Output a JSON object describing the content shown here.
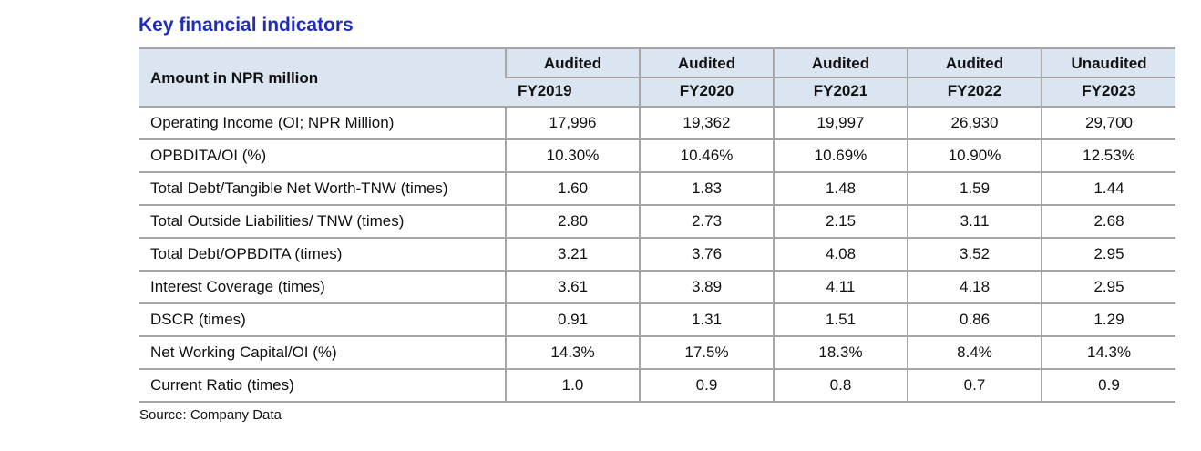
{
  "title": "Key financial indicators",
  "source": "Source: Company Data",
  "colors": {
    "title_blue": "#1f2dbb",
    "header_bg": "#dbe5f1",
    "border_gray": "#a6a6a6"
  },
  "table": {
    "corner_header": "Amount in NPR million",
    "audit_status": [
      "Audited",
      "Audited",
      "Audited",
      "Audited",
      "Unaudited"
    ],
    "years": [
      "FY2019",
      "FY2020",
      "FY2021",
      "FY2022",
      "FY2023"
    ],
    "rows": [
      {
        "label": "Operating Income (OI; NPR Million)",
        "values": [
          "17,996",
          "19,362",
          "19,997",
          "26,930",
          "29,700"
        ]
      },
      {
        "label": "OPBDITA/OI (%)",
        "values": [
          "10.30%",
          "10.46%",
          "10.69%",
          "10.90%",
          "12.53%"
        ]
      },
      {
        "label": "Total Debt/Tangible Net Worth-TNW (times)",
        "values": [
          "1.60",
          "1.83",
          "1.48",
          "1.59",
          "1.44"
        ]
      },
      {
        "label": "Total Outside Liabilities/ TNW (times)",
        "values": [
          "2.80",
          "2.73",
          "2.15",
          "3.11",
          "2.68"
        ]
      },
      {
        "label": "Total Debt/OPBDITA (times)",
        "values": [
          "3.21",
          "3.76",
          "4.08",
          "3.52",
          "2.95"
        ]
      },
      {
        "label": "Interest Coverage (times)",
        "values": [
          "3.61",
          "3.89",
          "4.11",
          "4.18",
          "2.95"
        ]
      },
      {
        "label": "DSCR (times)",
        "values": [
          "0.91",
          "1.31",
          "1.51",
          "0.86",
          "1.29"
        ]
      },
      {
        "label": "Net Working Capital/OI (%)",
        "values": [
          "14.3%",
          "17.5%",
          "18.3%",
          "8.4%",
          "14.3%"
        ]
      },
      {
        "label": "Current Ratio (times)",
        "values": [
          "1.0",
          "0.9",
          "0.8",
          "0.7",
          "0.9"
        ]
      }
    ]
  }
}
